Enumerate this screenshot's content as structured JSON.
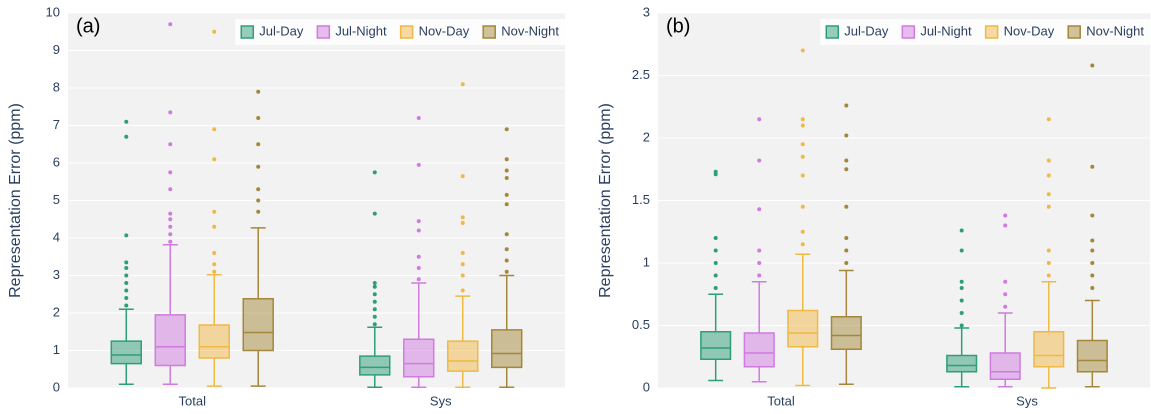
{
  "chart_data": [
    {
      "type": "box",
      "annotation": "(a)",
      "y_label": "Representation Error (ppm)",
      "categories": [
        "Total",
        "Sys"
      ],
      "ylim": [
        0,
        10
      ],
      "yticks": [
        0,
        1,
        2,
        3,
        4,
        5,
        6,
        7,
        8,
        9,
        10
      ],
      "grid": true,
      "legend_position": "top-right",
      "series": [
        {
          "name": "Jul-Day",
          "color": "#2e9e78",
          "values": [
            {
              "min": 0.1,
              "q1": 0.65,
              "median": 0.88,
              "q3": 1.25,
              "max": 2.1,
              "outliers": [
                2.2,
                2.4,
                2.6,
                2.8,
                3.0,
                3.2,
                3.35,
                4.07,
                6.7,
                7.1
              ]
            },
            {
              "min": 0.02,
              "q1": 0.35,
              "median": 0.55,
              "q3": 0.85,
              "max": 1.62,
              "outliers": [
                1.7,
                1.9,
                2.1,
                2.3,
                2.5,
                2.7,
                2.8,
                4.65,
                5.75
              ]
            }
          ]
        },
        {
          "name": "Jul-Night",
          "color": "#d07be0",
          "values": [
            {
              "min": 0.1,
              "q1": 0.6,
              "median": 1.1,
              "q3": 1.95,
              "max": 3.82,
              "outliers": [
                3.9,
                4.1,
                4.3,
                4.5,
                4.65,
                5.3,
                5.75,
                6.5,
                7.35,
                9.7
              ]
            },
            {
              "min": 0.02,
              "q1": 0.3,
              "median": 0.65,
              "q3": 1.3,
              "max": 2.8,
              "outliers": [
                2.9,
                3.2,
                3.5,
                4.2,
                4.45,
                5.95,
                7.2
              ]
            }
          ]
        },
        {
          "name": "Nov-Day",
          "color": "#f0b845",
          "values": [
            {
              "min": 0.05,
              "q1": 0.8,
              "median": 1.1,
              "q3": 1.68,
              "max": 3.02,
              "outliers": [
                3.1,
                3.3,
                3.6,
                4.3,
                4.7,
                6.1,
                6.9,
                9.5
              ]
            },
            {
              "min": 0.02,
              "q1": 0.45,
              "median": 0.72,
              "q3": 1.25,
              "max": 2.45,
              "outliers": [
                2.6,
                3.0,
                3.3,
                3.6,
                4.4,
                4.55,
                5.65,
                8.1
              ]
            }
          ]
        },
        {
          "name": "Nov-Night",
          "color": "#a4873a",
          "values": [
            {
              "min": 0.05,
              "q1": 1.0,
              "median": 1.48,
              "q3": 2.38,
              "max": 4.27,
              "outliers": [
                4.7,
                5.0,
                5.3,
                5.9,
                6.5,
                7.2,
                7.9
              ]
            },
            {
              "min": 0.02,
              "q1": 0.55,
              "median": 0.92,
              "q3": 1.55,
              "max": 3.0,
              "outliers": [
                3.1,
                3.4,
                3.7,
                4.1,
                4.9,
                5.15,
                5.6,
                5.8,
                6.1,
                6.9
              ]
            }
          ]
        }
      ]
    },
    {
      "type": "box",
      "annotation": "(b)",
      "y_label": "Representation Error (ppm)",
      "categories": [
        "Total",
        "Sys"
      ],
      "ylim": [
        0,
        3
      ],
      "yticks": [
        0,
        0.5,
        1,
        1.5,
        2,
        2.5,
        3
      ],
      "grid": true,
      "legend_position": "top-right",
      "series": [
        {
          "name": "Jul-Day",
          "color": "#2e9e78",
          "values": [
            {
              "min": 0.06,
              "q1": 0.23,
              "median": 0.32,
              "q3": 0.45,
              "max": 0.75,
              "outliers": [
                0.8,
                0.9,
                1.0,
                1.1,
                1.2,
                1.71,
                1.73
              ]
            },
            {
              "min": 0.01,
              "q1": 0.13,
              "median": 0.18,
              "q3": 0.26,
              "max": 0.48,
              "outliers": [
                0.5,
                0.6,
                0.7,
                0.8,
                0.85,
                1.1,
                1.26
              ]
            }
          ]
        },
        {
          "name": "Jul-Night",
          "color": "#d07be0",
          "values": [
            {
              "min": 0.05,
              "q1": 0.17,
              "median": 0.28,
              "q3": 0.44,
              "max": 0.85,
              "outliers": [
                0.9,
                1.0,
                1.1,
                1.43,
                1.82,
                2.15
              ]
            },
            {
              "min": 0.01,
              "q1": 0.07,
              "median": 0.13,
              "q3": 0.28,
              "max": 0.6,
              "outliers": [
                0.65,
                0.75,
                0.85,
                1.3,
                1.38
              ]
            }
          ]
        },
        {
          "name": "Nov-Day",
          "color": "#f0b845",
          "values": [
            {
              "min": 0.02,
              "q1": 0.33,
              "median": 0.44,
              "q3": 0.62,
              "max": 1.07,
              "outliers": [
                1.15,
                1.25,
                1.45,
                1.7,
                1.85,
                1.95,
                2.1,
                2.15,
                2.7
              ]
            },
            {
              "min": 0,
              "q1": 0.17,
              "median": 0.26,
              "q3": 0.45,
              "max": 0.85,
              "outliers": [
                0.9,
                1.0,
                1.1,
                1.45,
                1.55,
                1.7,
                1.82,
                2.15
              ]
            }
          ]
        },
        {
          "name": "Nov-Night",
          "color": "#a4873a",
          "values": [
            {
              "min": 0.03,
              "q1": 0.31,
              "median": 0.42,
              "q3": 0.57,
              "max": 0.94,
              "outliers": [
                1.0,
                1.1,
                1.2,
                1.45,
                1.75,
                1.82,
                2.02,
                2.26
              ]
            },
            {
              "min": 0.01,
              "q1": 0.13,
              "median": 0.22,
              "q3": 0.38,
              "max": 0.7,
              "outliers": [
                0.8,
                0.9,
                1.0,
                1.1,
                1.18,
                1.38,
                1.77,
                2.58
              ]
            }
          ]
        }
      ]
    }
  ]
}
